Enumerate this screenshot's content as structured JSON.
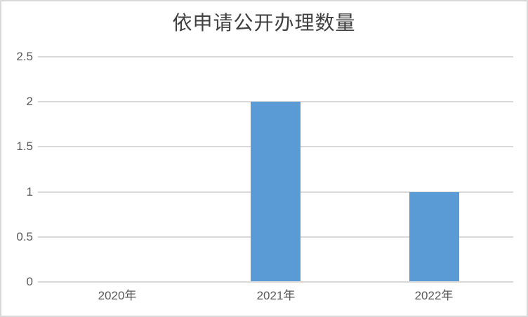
{
  "chart_data": {
    "type": "bar",
    "title": "依申请公开办理数量",
    "categories": [
      "2020年",
      "2021年",
      "2022年"
    ],
    "values": [
      0,
      2,
      1
    ],
    "xlabel": "",
    "ylabel": "",
    "ylim": [
      0,
      2.5
    ],
    "ytick_labels": [
      "0",
      "0.5",
      "1",
      "1.5",
      "2",
      "2.5"
    ],
    "ytick_values": [
      0,
      0.5,
      1,
      1.5,
      2,
      2.5
    ],
    "grid": true,
    "legend": "none",
    "colors": {
      "bar": "#5b9bd5",
      "gridline": "#d9d9d9",
      "axis_line": "#d9d9d9",
      "tick_label": "#595959",
      "title": "#404040",
      "frame_border": "#d9d9d9",
      "background": "#ffffff"
    }
  }
}
